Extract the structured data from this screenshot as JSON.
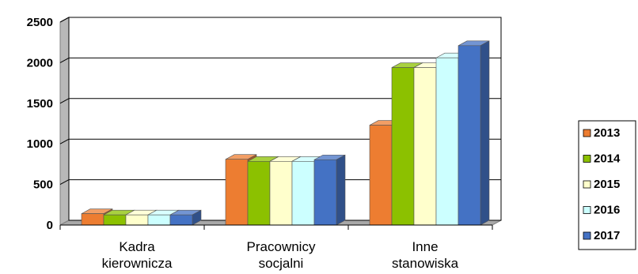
{
  "chart_data": {
    "type": "bar",
    "title": "",
    "xlabel": "",
    "ylabel": "",
    "ylim": [
      0,
      2500
    ],
    "yticks": [
      0,
      500,
      1000,
      1500,
      2000,
      2500
    ],
    "grid": true,
    "legend_position": "right",
    "categories": [
      [
        "Kadra",
        "kierownicza"
      ],
      [
        "Pracownicy",
        "socjalni"
      ],
      [
        "Inne",
        "stanowiska"
      ]
    ],
    "series": [
      {
        "name": "2013",
        "color": "#ED7D31",
        "values": [
          140,
          810,
          1230
        ]
      },
      {
        "name": "2014",
        "color": "#8CC100",
        "values": [
          125,
          785,
          1940
        ]
      },
      {
        "name": "2015",
        "color": "#FFFFCC",
        "values": [
          125,
          785,
          1940
        ]
      },
      {
        "name": "2016",
        "color": "#CCFFFF",
        "values": [
          125,
          785,
          2060
        ]
      },
      {
        "name": "2017",
        "color": "#4472C4",
        "values": [
          125,
          805,
          2210
        ]
      }
    ]
  }
}
